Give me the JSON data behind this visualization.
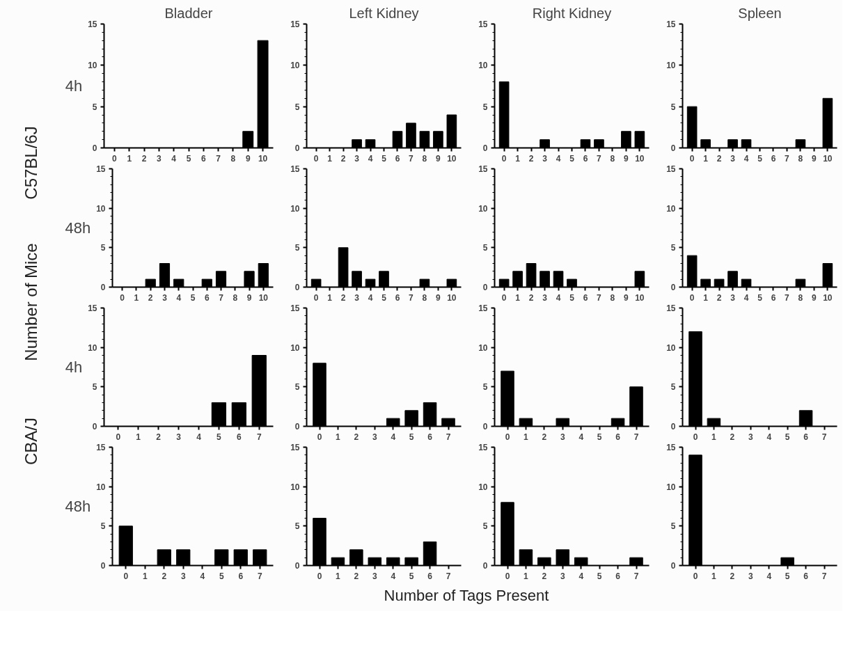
{
  "chart_data": [
    {
      "type": "bar",
      "title": "Bladder",
      "ylabel": "4h",
      "annotations": [
        "C57BL/6J"
      ],
      "categories": [
        "0",
        "1",
        "2",
        "3",
        "4",
        "5",
        "6",
        "7",
        "8",
        "9",
        "10"
      ],
      "values": [
        0,
        0,
        0,
        0,
        0,
        0,
        0,
        0,
        0,
        2,
        13
      ],
      "color": "#000000",
      "ylim": [
        0,
        15
      ],
      "yticks": [
        0,
        {
          "value": 1,
          "label": null
        },
        {
          "value": 2,
          "label": null
        },
        {
          "value": 3,
          "label": null
        },
        {
          "value": 4,
          "label": null
        },
        5,
        {
          "value": 6,
          "label": null
        },
        {
          "value": 7,
          "label": null
        },
        {
          "value": 8,
          "label": null
        },
        {
          "value": 9,
          "label": null
        },
        10,
        {
          "value": 11,
          "label": null
        },
        {
          "value": 12,
          "label": null
        },
        {
          "value": 13,
          "label": null
        },
        {
          "value": 14,
          "label": null
        },
        15
      ],
      "grid": false
    },
    {
      "type": "bar",
      "title": "Left Kidney",
      "categories": [
        "0",
        "1",
        "2",
        "3",
        "4",
        "5",
        "6",
        "7",
        "8",
        "9",
        "10"
      ],
      "values": [
        0,
        0,
        0,
        1,
        1,
        0,
        2,
        3,
        2,
        2,
        4
      ],
      "color": "#000000",
      "ylim": [
        0,
        15
      ],
      "yticks": [
        0,
        {
          "value": 1,
          "label": null
        },
        {
          "value": 2,
          "label": null
        },
        {
          "value": 3,
          "label": null
        },
        {
          "value": 4,
          "label": null
        },
        5,
        {
          "value": 6,
          "label": null
        },
        {
          "value": 7,
          "label": null
        },
        {
          "value": 8,
          "label": null
        },
        {
          "value": 9,
          "label": null
        },
        10,
        {
          "value": 11,
          "label": null
        },
        {
          "value": 12,
          "label": null
        },
        {
          "value": 13,
          "label": null
        },
        {
          "value": 14,
          "label": null
        },
        15
      ],
      "grid": false
    },
    {
      "type": "bar",
      "title": "Right Kidney",
      "categories": [
        "0",
        "1",
        "2",
        "3",
        "4",
        "5",
        "6",
        "7",
        "8",
        "9",
        "10"
      ],
      "values": [
        8,
        0,
        0,
        1,
        0,
        0,
        1,
        1,
        0,
        2,
        2
      ],
      "color": "#000000",
      "ylim": [
        0,
        15
      ],
      "yticks": [
        0,
        {
          "value": 1,
          "label": null
        },
        {
          "value": 2,
          "label": null
        },
        {
          "value": 3,
          "label": null
        },
        {
          "value": 4,
          "label": null
        },
        5,
        {
          "value": 6,
          "label": null
        },
        {
          "value": 7,
          "label": null
        },
        {
          "value": 8,
          "label": null
        },
        {
          "value": 9,
          "label": null
        },
        10,
        {
          "value": 11,
          "label": null
        },
        {
          "value": 12,
          "label": null
        },
        {
          "value": 13,
          "label": null
        },
        {
          "value": 14,
          "label": null
        },
        15
      ],
      "grid": false
    },
    {
      "type": "bar",
      "title": "Spleen",
      "categories": [
        "0",
        "1",
        "2",
        "3",
        "4",
        "5",
        "6",
        "7",
        "8",
        "9",
        "10"
      ],
      "values": [
        5,
        1,
        0,
        1,
        1,
        0,
        0,
        0,
        1,
        0,
        6
      ],
      "color": "#000000",
      "ylim": [
        0,
        15
      ],
      "yticks": [
        0,
        {
          "value": 1,
          "label": null
        },
        {
          "value": 2,
          "label": null
        },
        {
          "value": 3,
          "label": null
        },
        {
          "value": 4,
          "label": null
        },
        5,
        {
          "value": 6,
          "label": null
        },
        {
          "value": 7,
          "label": null
        },
        {
          "value": 8,
          "label": null
        },
        {
          "value": 9,
          "label": null
        },
        10,
        {
          "value": 11,
          "label": null
        },
        {
          "value": 12,
          "label": null
        },
        {
          "value": 13,
          "label": null
        },
        {
          "value": 14,
          "label": null
        },
        15
      ],
      "grid": false
    },
    {
      "type": "bar",
      "ylabel": "48h",
      "annotations": [
        "Number of Mice"
      ],
      "categories": [
        "0",
        "1",
        "2",
        "3",
        "4",
        "5",
        "6",
        "7",
        "8",
        "9",
        "10"
      ],
      "values": [
        0,
        0,
        1,
        3,
        1,
        0,
        1,
        2,
        0,
        2,
        3
      ],
      "color": "#000000",
      "ylim": [
        0,
        15
      ],
      "yticks": [
        0,
        {
          "value": 1,
          "label": null
        },
        {
          "value": 2,
          "label": null
        },
        {
          "value": 3,
          "label": null
        },
        {
          "value": 4,
          "label": null
        },
        5,
        {
          "value": 6,
          "label": null
        },
        {
          "value": 7,
          "label": null
        },
        {
          "value": 8,
          "label": null
        },
        {
          "value": 9,
          "label": null
        },
        10,
        {
          "value": 11,
          "label": null
        },
        {
          "value": 12,
          "label": null
        },
        {
          "value": 13,
          "label": null
        },
        {
          "value": 14,
          "label": null
        },
        15
      ],
      "grid": false
    },
    {
      "type": "bar",
      "categories": [
        "0",
        "1",
        "2",
        "3",
        "4",
        "5",
        "6",
        "7",
        "8",
        "9",
        "10"
      ],
      "values": [
        1,
        0,
        5,
        2,
        1,
        2,
        0,
        0,
        1,
        0,
        1
      ],
      "color": "#000000",
      "ylim": [
        0,
        15
      ],
      "yticks": [
        0,
        {
          "value": 1,
          "label": null
        },
        {
          "value": 2,
          "label": null
        },
        {
          "value": 3,
          "label": null
        },
        {
          "value": 4,
          "label": null
        },
        5,
        {
          "value": 6,
          "label": null
        },
        {
          "value": 7,
          "label": null
        },
        {
          "value": 8,
          "label": null
        },
        {
          "value": 9,
          "label": null
        },
        10,
        {
          "value": 11,
          "label": null
        },
        {
          "value": 12,
          "label": null
        },
        {
          "value": 13,
          "label": null
        },
        {
          "value": 14,
          "label": null
        },
        15
      ],
      "grid": false
    },
    {
      "type": "bar",
      "categories": [
        "0",
        "1",
        "2",
        "3",
        "4",
        "5",
        "6",
        "7",
        "8",
        "9",
        "10"
      ],
      "values": [
        1,
        2,
        3,
        2,
        2,
        1,
        0,
        0,
        0,
        0,
        2
      ],
      "color": "#000000",
      "ylim": [
        0,
        15
      ],
      "yticks": [
        0,
        {
          "value": 1,
          "label": null
        },
        {
          "value": 2,
          "label": null
        },
        {
          "value": 3,
          "label": null
        },
        {
          "value": 4,
          "label": null
        },
        5,
        {
          "value": 6,
          "label": null
        },
        {
          "value": 7,
          "label": null
        },
        {
          "value": 8,
          "label": null
        },
        {
          "value": 9,
          "label": null
        },
        10,
        {
          "value": 11,
          "label": null
        },
        {
          "value": 12,
          "label": null
        },
        {
          "value": 13,
          "label": null
        },
        {
          "value": 14,
          "label": null
        },
        15
      ],
      "grid": false
    },
    {
      "type": "bar",
      "categories": [
        "0",
        "1",
        "2",
        "3",
        "4",
        "5",
        "6",
        "7",
        "8",
        "9",
        "10"
      ],
      "values": [
        4,
        1,
        1,
        2,
        1,
        0,
        0,
        0,
        1,
        0,
        3
      ],
      "color": "#000000",
      "ylim": [
        0,
        15
      ],
      "yticks": [
        0,
        {
          "value": 1,
          "label": null
        },
        {
          "value": 2,
          "label": null
        },
        {
          "value": 3,
          "label": null
        },
        {
          "value": 4,
          "label": null
        },
        5,
        {
          "value": 6,
          "label": null
        },
        {
          "value": 7,
          "label": null
        },
        {
          "value": 8,
          "label": null
        },
        {
          "value": 9,
          "label": null
        },
        10,
        {
          "value": 11,
          "label": null
        },
        {
          "value": 12,
          "label": null
        },
        {
          "value": 13,
          "label": null
        },
        {
          "value": 14,
          "label": null
        },
        15
      ],
      "grid": false
    },
    {
      "type": "bar",
      "ylabel": "4h",
      "annotations": [
        "CBA/J"
      ],
      "categories": [
        "0",
        "1",
        "2",
        "3",
        "4",
        "5",
        "6",
        "7"
      ],
      "values": [
        0,
        0,
        0,
        0,
        0,
        3,
        3,
        9
      ],
      "color": "#000000",
      "ylim": [
        0,
        15
      ],
      "yticks": [
        0,
        {
          "value": 1,
          "label": null
        },
        {
          "value": 2,
          "label": null
        },
        {
          "value": 3,
          "label": null
        },
        {
          "value": 4,
          "label": null
        },
        5,
        {
          "value": 6,
          "label": null
        },
        {
          "value": 7,
          "label": null
        },
        {
          "value": 8,
          "label": null
        },
        {
          "value": 9,
          "label": null
        },
        10,
        {
          "value": 11,
          "label": null
        },
        {
          "value": 12,
          "label": null
        },
        {
          "value": 13,
          "label": null
        },
        {
          "value": 14,
          "label": null
        },
        15
      ],
      "grid": false
    },
    {
      "type": "bar",
      "categories": [
        "0",
        "1",
        "2",
        "3",
        "4",
        "5",
        "6",
        "7"
      ],
      "values": [
        8,
        0,
        0,
        0,
        1,
        2,
        3,
        1
      ],
      "color": "#000000",
      "ylim": [
        0,
        15
      ],
      "yticks": [
        0,
        {
          "value": 1,
          "label": null
        },
        {
          "value": 2,
          "label": null
        },
        {
          "value": 3,
          "label": null
        },
        {
          "value": 4,
          "label": null
        },
        5,
        {
          "value": 6,
          "label": null
        },
        {
          "value": 7,
          "label": null
        },
        {
          "value": 8,
          "label": null
        },
        {
          "value": 9,
          "label": null
        },
        10,
        {
          "value": 11,
          "label": null
        },
        {
          "value": 12,
          "label": null
        },
        {
          "value": 13,
          "label": null
        },
        {
          "value": 14,
          "label": null
        },
        15
      ],
      "grid": false
    },
    {
      "type": "bar",
      "categories": [
        "0",
        "1",
        "2",
        "3",
        "4",
        "5",
        "6",
        "7"
      ],
      "values": [
        7,
        1,
        0,
        1,
        0,
        0,
        1,
        5
      ],
      "color": "#000000",
      "ylim": [
        0,
        15
      ],
      "yticks": [
        0,
        {
          "value": 1,
          "label": null
        },
        {
          "value": 2,
          "label": null
        },
        {
          "value": 3,
          "label": null
        },
        {
          "value": 4,
          "label": null
        },
        5,
        {
          "value": 6,
          "label": null
        },
        {
          "value": 7,
          "label": null
        },
        {
          "value": 8,
          "label": null
        },
        {
          "value": 9,
          "label": null
        },
        10,
        {
          "value": 11,
          "label": null
        },
        {
          "value": 12,
          "label": null
        },
        {
          "value": 13,
          "label": null
        },
        {
          "value": 14,
          "label": null
        },
        15
      ],
      "grid": false
    },
    {
      "type": "bar",
      "categories": [
        "0",
        "1",
        "2",
        "3",
        "4",
        "5",
        "6",
        "7"
      ],
      "values": [
        12,
        1,
        0,
        0,
        0,
        0,
        2,
        0
      ],
      "color": "#000000",
      "ylim": [
        0,
        15
      ],
      "yticks": [
        0,
        {
          "value": 1,
          "label": null
        },
        {
          "value": 2,
          "label": null
        },
        {
          "value": 3,
          "label": null
        },
        {
          "value": 4,
          "label": null
        },
        5,
        {
          "value": 6,
          "label": null
        },
        {
          "value": 7,
          "label": null
        },
        {
          "value": 8,
          "label": null
        },
        {
          "value": 9,
          "label": null
        },
        10,
        {
          "value": 11,
          "label": null
        },
        {
          "value": 12,
          "label": null
        },
        {
          "value": 13,
          "label": null
        },
        {
          "value": 14,
          "label": null
        },
        15
      ],
      "grid": false
    },
    {
      "type": "bar",
      "ylabel": "48h",
      "categories": [
        "0",
        "1",
        "2",
        "3",
        "4",
        "5",
        "6",
        "7"
      ],
      "values": [
        5,
        0,
        2,
        2,
        0,
        2,
        2,
        2
      ],
      "color": "#000000",
      "ylim": [
        0,
        15
      ],
      "yticks": [
        0,
        {
          "value": 1,
          "label": null
        },
        {
          "value": 2,
          "label": null
        },
        {
          "value": 3,
          "label": null
        },
        {
          "value": 4,
          "label": null
        },
        5,
        {
          "value": 6,
          "label": null
        },
        {
          "value": 7,
          "label": null
        },
        {
          "value": 8,
          "label": null
        },
        {
          "value": 9,
          "label": null
        },
        10,
        {
          "value": 11,
          "label": null
        },
        {
          "value": 12,
          "label": null
        },
        {
          "value": 13,
          "label": null
        },
        {
          "value": 14,
          "label": null
        },
        15
      ],
      "grid": false
    },
    {
      "type": "bar",
      "annotations": [
        "Number of Tags Present"
      ],
      "categories": [
        "0",
        "1",
        "2",
        "3",
        "4",
        "5",
        "6",
        "7"
      ],
      "values": [
        6,
        1,
        2,
        1,
        1,
        1,
        3,
        0
      ],
      "color": "#000000",
      "ylim": [
        0,
        15
      ],
      "yticks": [
        0,
        {
          "value": 1,
          "label": null
        },
        {
          "value": 2,
          "label": null
        },
        {
          "value": 3,
          "label": null
        },
        {
          "value": 4,
          "label": null
        },
        5,
        {
          "value": 6,
          "label": null
        },
        {
          "value": 7,
          "label": null
        },
        {
          "value": 8,
          "label": null
        },
        {
          "value": 9,
          "label": null
        },
        10,
        {
          "value": 11,
          "label": null
        },
        {
          "value": 12,
          "label": null
        },
        {
          "value": 13,
          "label": null
        },
        {
          "value": 14,
          "label": null
        },
        15
      ],
      "grid": false
    },
    {
      "type": "bar",
      "categories": [
        "0",
        "1",
        "2",
        "3",
        "4",
        "5",
        "6",
        "7"
      ],
      "values": [
        8,
        2,
        1,
        2,
        1,
        0,
        0,
        1
      ],
      "color": "#000000",
      "ylim": [
        0,
        15
      ],
      "yticks": [
        0,
        {
          "value": 1,
          "label": null
        },
        {
          "value": 2,
          "label": null
        },
        {
          "value": 3,
          "label": null
        },
        {
          "value": 4,
          "label": null
        },
        5,
        {
          "value": 6,
          "label": null
        },
        {
          "value": 7,
          "label": null
        },
        {
          "value": 8,
          "label": null
        },
        {
          "value": 9,
          "label": null
        },
        10,
        {
          "value": 11,
          "label": null
        },
        {
          "value": 12,
          "label": null
        },
        {
          "value": 13,
          "label": null
        },
        {
          "value": 14,
          "label": null
        },
        15
      ],
      "grid": false
    },
    {
      "type": "bar",
      "categories": [
        "0",
        "1",
        "2",
        "3",
        "4",
        "5",
        "6",
        "7"
      ],
      "values": [
        14,
        0,
        0,
        0,
        0,
        1,
        0,
        0
      ],
      "color": "#000000",
      "ylim": [
        0,
        15
      ],
      "yticks": [
        0,
        {
          "value": 1,
          "label": null
        },
        {
          "value": 2,
          "label": null
        },
        {
          "value": 3,
          "label": null
        },
        {
          "value": 4,
          "label": null
        },
        5,
        {
          "value": 6,
          "label": null
        },
        {
          "value": 7,
          "label": null
        },
        {
          "value": 8,
          "label": null
        },
        {
          "value": 9,
          "label": null
        },
        10,
        {
          "value": 11,
          "label": null
        },
        {
          "value": 12,
          "label": null
        },
        {
          "value": 13,
          "label": null
        },
        {
          "value": 14,
          "label": null
        },
        15
      ],
      "grid": false
    }
  ]
}
